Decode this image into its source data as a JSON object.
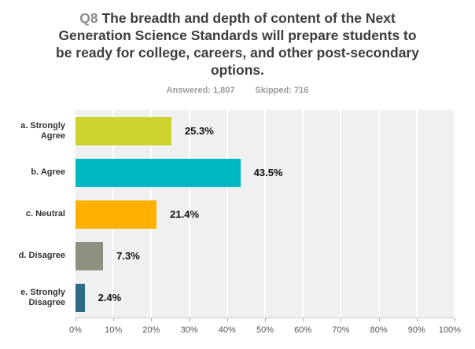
{
  "header": {
    "q_label": "Q8",
    "title": "The breadth and depth of content of the Next Generation Science Standards will prepare students to be ready for college, careers, and other post-secondary options.",
    "answered_label": "Answered: 1,807",
    "skipped_label": "Skipped: 716"
  },
  "chart_data": {
    "type": "bar",
    "orientation": "horizontal",
    "title": "Q8 The breadth and depth of content of the Next Generation Science Standards will prepare students to be ready for college, careers, and other post-secondary options.",
    "subtitle": "Answered: 1,807    Skipped: 716",
    "answered": "1,807",
    "skipped": "716",
    "categories": [
      "a. Strongly Agree",
      "b. Agree",
      "c. Neutral",
      "d. Disagree",
      "e. Strongly Disagree"
    ],
    "values": [
      25.3,
      43.5,
      21.4,
      7.3,
      2.4
    ],
    "value_labels": [
      "25.3%",
      "43.5%",
      "21.4%",
      "7.3%",
      "2.4%"
    ],
    "colors": [
      "#ccd32e",
      "#00b9c0",
      "#ffb000",
      "#8e9080",
      "#2e6c84"
    ],
    "x_ticks": [
      0,
      10,
      20,
      30,
      40,
      50,
      60,
      70,
      80,
      90,
      100
    ],
    "x_tick_labels": [
      "0%",
      "10%",
      "20%",
      "30%",
      "40%",
      "50%",
      "60%",
      "70%",
      "80%",
      "90%",
      "100%"
    ],
    "xlim": [
      0,
      100
    ],
    "grid": true,
    "legend": false,
    "plot_background": "#f0f0f1",
    "gridline_color": "#ffffff"
  }
}
